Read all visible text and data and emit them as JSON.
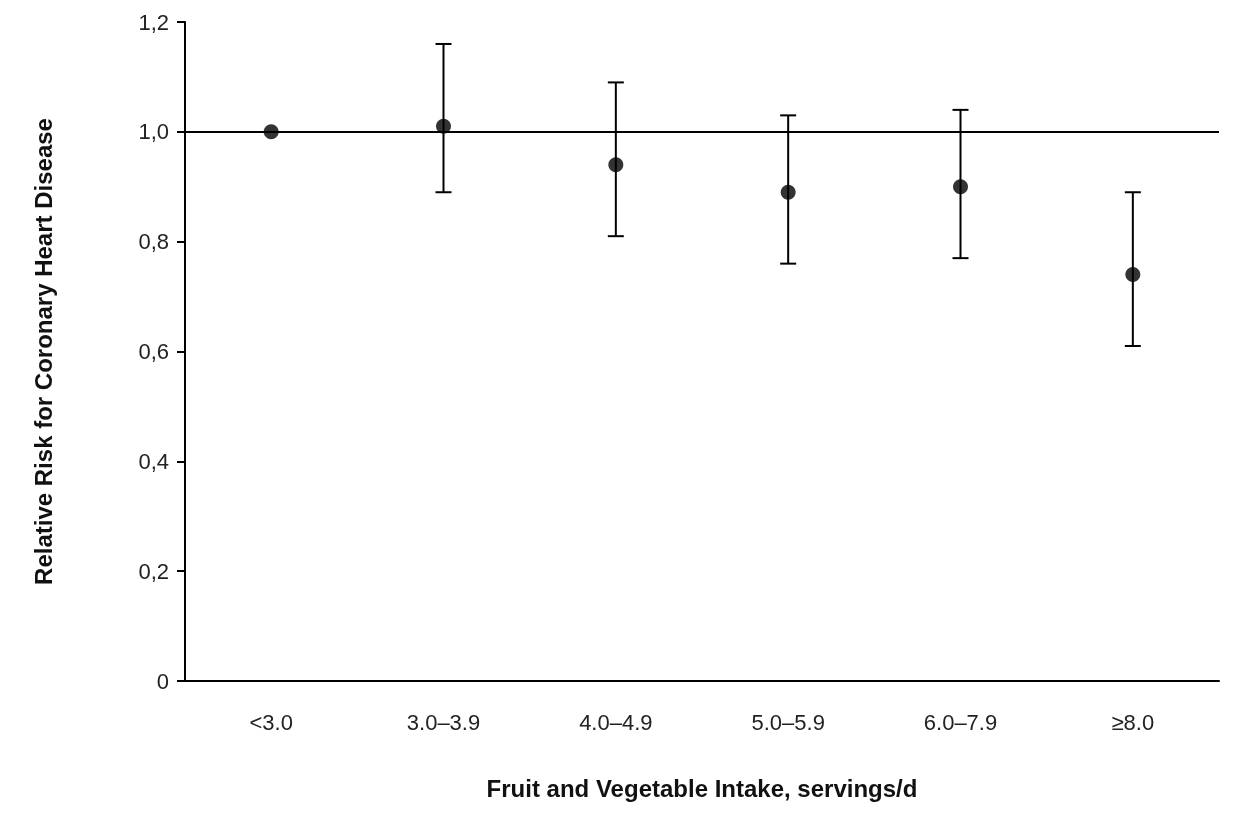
{
  "chart_data": {
    "type": "scatter",
    "xlabel": "Fruit and Vegetable Intake, servings/d",
    "ylabel": "Relative Risk for Coronary Heart Disease",
    "categories": [
      "<3.0",
      "3.0–3.9",
      "4.0–4.9",
      "5.0–5.9",
      "6.0–7.9",
      "≥8.0"
    ],
    "values": [
      1.0,
      1.01,
      0.94,
      0.89,
      0.9,
      0.74
    ],
    "errors": [
      null,
      [
        0.89,
        1.16
      ],
      [
        0.81,
        1.09
      ],
      [
        0.76,
        1.03
      ],
      [
        0.77,
        1.04
      ],
      [
        0.61,
        0.89
      ]
    ],
    "color": "#000000",
    "marker": "circle",
    "grid": false,
    "ylim": [
      0,
      1.2
    ],
    "yticks": [
      0,
      {
        "value": 0.2,
        "label": "0,2"
      },
      {
        "value": 0.4,
        "label": "0,4"
      },
      {
        "value": 0.6,
        "label": "0,6"
      },
      {
        "value": 0.8,
        "label": "0,8"
      },
      {
        "value": 1.0,
        "label": "1,0"
      },
      {
        "value": 1.2,
        "label": "1,2"
      }
    ],
    "ref_lines": [
      {
        "axis": "y",
        "value": 1.0,
        "color": "#000000",
        "line_style": "solid"
      }
    ]
  }
}
